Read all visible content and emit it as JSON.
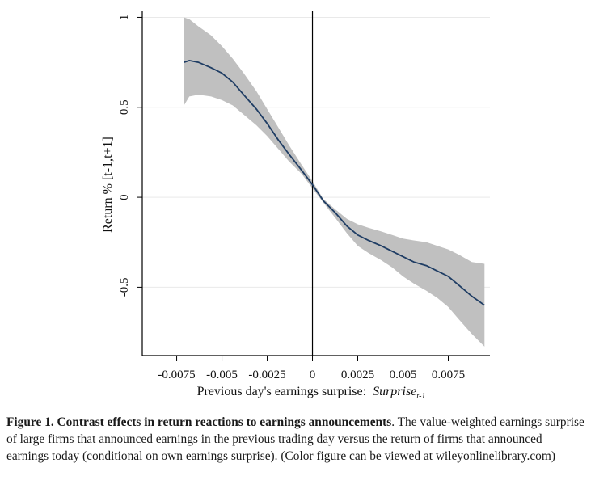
{
  "chart_data": {
    "type": "line",
    "xlabel": "Previous day's earnings surprise:",
    "xlabel_var": "Surprise",
    "xlabel_sub": "t-1",
    "ylabel": "Return % [t-1,t+1]",
    "xlim": [
      -0.0094,
      0.0098
    ],
    "ylim": [
      -0.88,
      1.02
    ],
    "x_ticks": [
      -0.0075,
      -0.005,
      -0.0025,
      0,
      0.0025,
      0.005,
      0.0075
    ],
    "x_tick_labels": [
      "-0.0075",
      "-0.005",
      "-0.0025",
      "0",
      "0.0025",
      "0.005",
      "0.0075"
    ],
    "y_ticks": [
      -0.5,
      0,
      0.5,
      1
    ],
    "y_tick_labels": [
      "-0.5",
      "0",
      "0.5",
      "1"
    ],
    "grid": "horizontal",
    "vertical_reference_line": 0,
    "series": [
      {
        "x": [
          -0.0071,
          -0.0068,
          -0.0063,
          -0.0056,
          -0.005,
          -0.0044,
          -0.0038,
          -0.0031,
          -0.0025,
          -0.0019,
          -0.0013,
          -0.0006,
          0,
          0.0006,
          0.0013,
          0.0019,
          0.0025,
          0.0031,
          0.0038,
          0.0044,
          0.005,
          0.0056,
          0.0063,
          0.0069,
          0.0075,
          0.0081,
          0.0088,
          0.0095
        ],
        "y": [
          0.75,
          0.76,
          0.75,
          0.72,
          0.69,
          0.64,
          0.57,
          0.49,
          0.41,
          0.32,
          0.24,
          0.15,
          0.07,
          -0.02,
          -0.09,
          -0.16,
          -0.21,
          -0.24,
          -0.27,
          -0.3,
          -0.33,
          -0.36,
          -0.38,
          -0.41,
          -0.44,
          -0.49,
          -0.55,
          -0.6
        ],
        "lower": [
          0.51,
          0.56,
          0.57,
          0.56,
          0.54,
          0.51,
          0.46,
          0.4,
          0.34,
          0.27,
          0.2,
          0.13,
          0.05,
          -0.03,
          -0.12,
          -0.2,
          -0.27,
          -0.31,
          -0.35,
          -0.39,
          -0.44,
          -0.48,
          -0.52,
          -0.56,
          -0.61,
          -0.68,
          -0.76,
          -0.83
        ],
        "upper": [
          1.0,
          0.99,
          0.95,
          0.9,
          0.84,
          0.77,
          0.69,
          0.59,
          0.49,
          0.39,
          0.29,
          0.18,
          0.09,
          -0.01,
          -0.07,
          -0.12,
          -0.15,
          -0.17,
          -0.19,
          -0.21,
          -0.23,
          -0.24,
          -0.25,
          -0.27,
          -0.29,
          -0.32,
          -0.36,
          -0.37
        ]
      }
    ],
    "colors": {
      "line": "#1f3d64",
      "band": "#c0c0c0",
      "grid": "#e9e9e9",
      "axis": "#000000"
    }
  },
  "caption": {
    "title": "Figure 1. Contrast effects in return reactions to earnings announcements",
    "body": ". The value-weighted earnings surprise of large firms that announced earnings in the previous trading day versus the return of firms that announced earnings today (conditional on own earnings surprise). (Color figure can be viewed at wileyonlinelibrary.com)"
  }
}
